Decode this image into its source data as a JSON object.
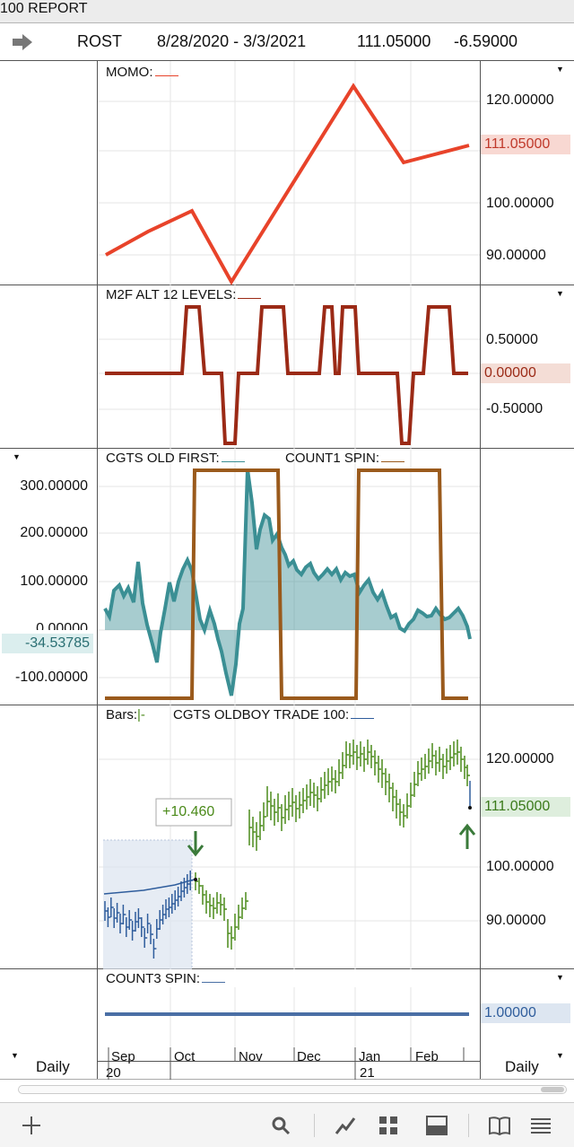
{
  "title": "100  REPORT",
  "header": {
    "symbol": "ROST",
    "date_range": "8/28/2020 - 3/3/2021",
    "price": "111.05000",
    "change": "-6.59000"
  },
  "momo": {
    "label": "MOMO:",
    "ticks": [
      "120.00000",
      "100.00000",
      "90.00000"
    ],
    "value": "111.05000",
    "line_color": "#e8432a",
    "value_bg": "#f8d8d2"
  },
  "m2f": {
    "label": "M2F ALT 12 LEVELS:",
    "ticks": [
      "0.50000",
      "-0.50000"
    ],
    "value": "0.00000",
    "line_color": "#9b2a16",
    "value_bg": "#f4ddd6"
  },
  "cgts": {
    "label1": "CGTS OLD FIRST:",
    "label2": "COUNT1 SPIN:",
    "ticks": [
      "300.00000",
      "200.00000",
      "100.00000",
      "0.00000",
      "-100.00000"
    ],
    "value": "-34.53785",
    "teal": "#3b8f94",
    "brown": "#9a5a1c",
    "value_bg": "#dbeeee"
  },
  "bars": {
    "label1": "Bars:",
    "label1_mark": "|-",
    "label2": "CGTS OLDBOY TRADE 100:",
    "ticks": [
      "120.00000",
      "100.00000",
      "90.00000"
    ],
    "value": "111.05000",
    "annotation": "+10.460",
    "green": "#4b8a1a",
    "blue": "#2f5d9c",
    "value_bg": "#deeedd"
  },
  "count3": {
    "label": "COUNT3 SPIN:",
    "value": "1.00000",
    "line_color": "#4a6fa5",
    "value_bg": "#dde6f1"
  },
  "axis": {
    "left_label": "Daily",
    "right_label": "Daily",
    "months": [
      "Sep",
      "Oct",
      "Nov",
      "Dec",
      "Jan",
      "Feb"
    ],
    "year_left": "20",
    "year_right": "21"
  },
  "footer_icons": [
    "add-icon",
    "search-icon",
    "chart-line-icon",
    "grid-icon",
    "layout-icon",
    "book-icon",
    "menu-icon"
  ]
}
